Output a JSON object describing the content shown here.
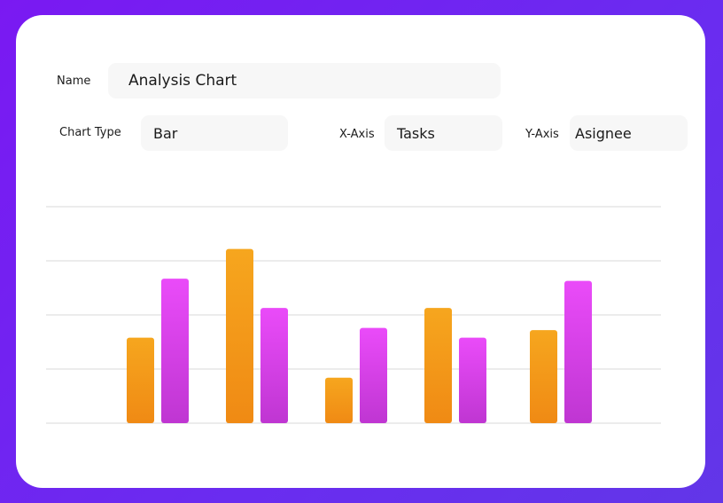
{
  "form": {
    "name_label": "Name",
    "name_value": "Analysis Chart",
    "chart_type_label": "Chart Type",
    "chart_type_value": "Bar",
    "x_axis_label": "X-Axis",
    "x_axis_value": "Tasks",
    "y_axis_label": "Y-Axis",
    "y_axis_value": "Asignee"
  },
  "colors": {
    "background_start": "#7a19f2",
    "background_end": "#6236e8",
    "series_orange_top": "#f6a61e",
    "series_orange_bottom": "#f08a14",
    "series_pink_top": "#ea4bf9",
    "series_pink_bottom": "#bf36d2",
    "gridline": "#d9d9d9"
  },
  "chart_data": {
    "type": "bar",
    "title": "",
    "xlabel": "",
    "ylabel": "",
    "categories": [
      "",
      "",
      "",
      "",
      ""
    ],
    "ylim": [
      0,
      4
    ],
    "grid": true,
    "series": [
      {
        "name": "orange",
        "values": [
          1.58,
          3.22,
          0.84,
          2.13,
          1.72
        ]
      },
      {
        "name": "pink",
        "values": [
          2.67,
          2.13,
          1.76,
          1.58,
          2.63
        ]
      }
    ]
  }
}
